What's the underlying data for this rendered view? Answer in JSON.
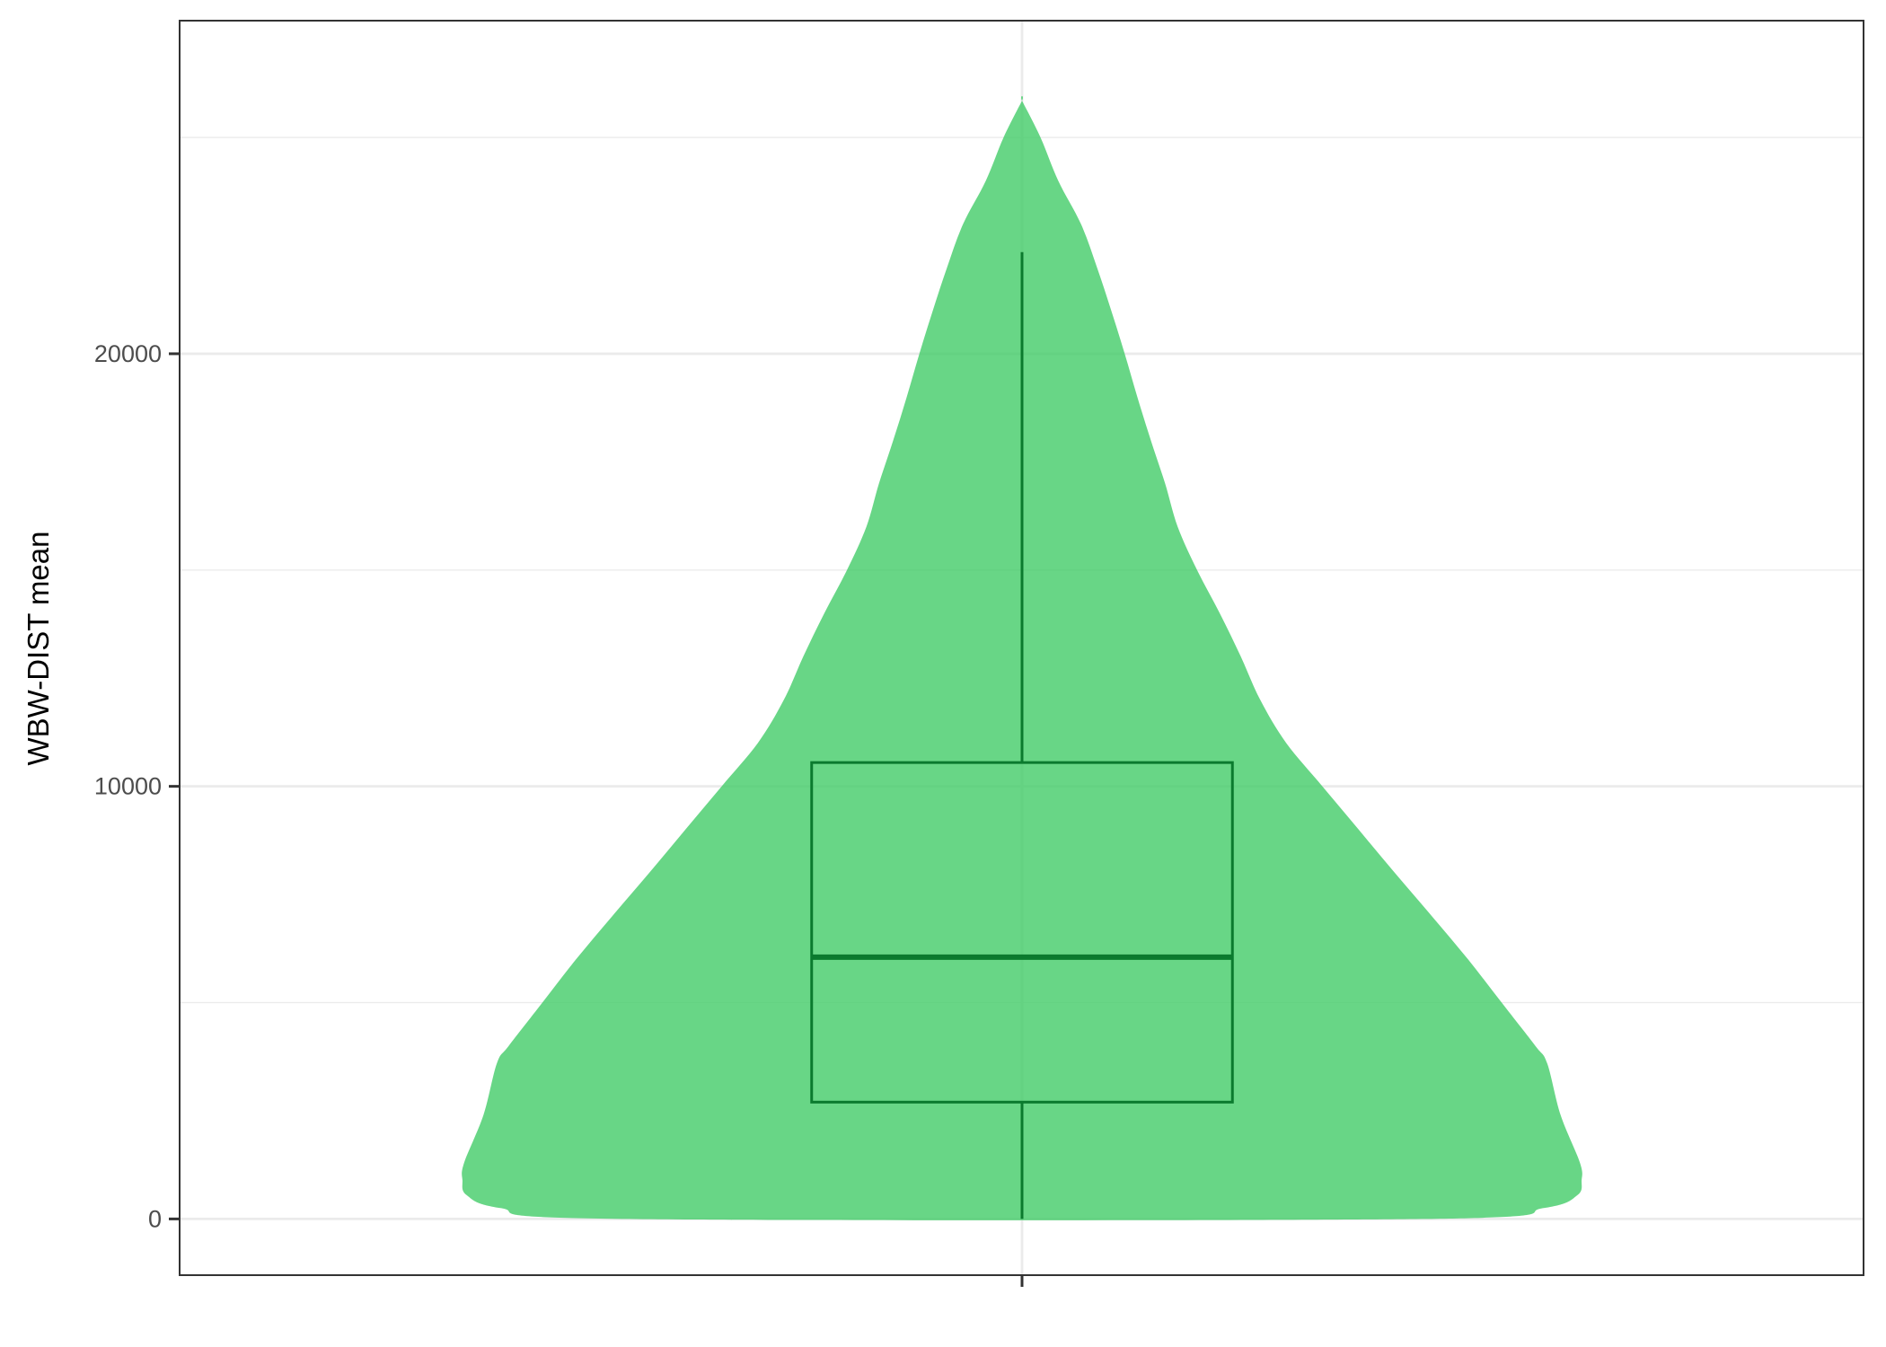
{
  "chart_data": {
    "type": "violin",
    "title": "",
    "xlabel": "",
    "ylabel": "WBW-DIST mean",
    "ylim": [
      -1300,
      27700
    ],
    "y_ticks": [
      0,
      10000,
      20000
    ],
    "y_tick_labels": [
      "0",
      "10000",
      "20000"
    ],
    "minor_y_ticks": [
      5000,
      15000,
      25000
    ],
    "grid": true,
    "legend": "none",
    "fill_color": "#3ecb64",
    "box_color": "#0b7a2e",
    "grid_color": "#ebebeb",
    "violin": {
      "y": [
        0,
        250,
        550,
        900,
        1300,
        2400,
        3600,
        4000,
        5000,
        6000,
        7000,
        8000,
        9000,
        10000,
        11000,
        12000,
        13000,
        14000,
        15000,
        16000,
        17000,
        18000,
        19000,
        20000,
        21000,
        22000,
        23000,
        24000,
        25000,
        25850
      ],
      "half_width": [
        0.475,
        0.62,
        0.66,
        0.665,
        0.663,
        0.64,
        0.624,
        0.61,
        0.57,
        0.53,
        0.487,
        0.443,
        0.4,
        0.357,
        0.314,
        0.283,
        0.26,
        0.235,
        0.208,
        0.185,
        0.17,
        0.153,
        0.137,
        0.122,
        0.106,
        0.089,
        0.07,
        0.043,
        0.022,
        0.0
      ]
    },
    "box": {
      "whisker_low": 0,
      "q1": 2700,
      "median": 6050,
      "q3": 10550,
      "whisker_high": 22350
    }
  }
}
